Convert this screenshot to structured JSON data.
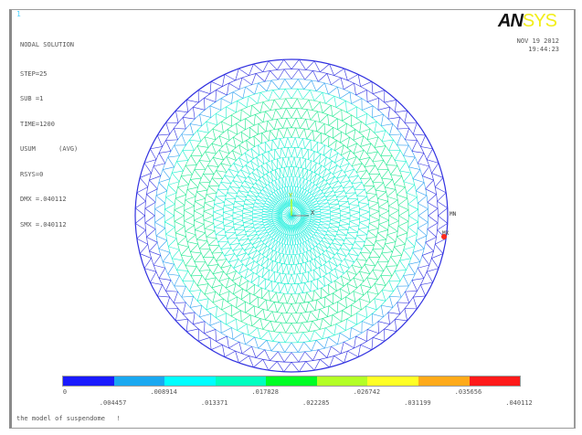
{
  "window_number": "1",
  "logo": {
    "part1": "AN",
    "part2": "SYS"
  },
  "info": {
    "title": "NODAL SOLUTION",
    "lines": [
      "STEP=25",
      "SUB =1",
      "TIME=1200",
      "USUM      (AVG)",
      "RSYS=0",
      "DMX =.040112",
      "SMX =.040112"
    ]
  },
  "date": "NOV 19 2012",
  "time": "19:44:23",
  "markers": {
    "min": "MN",
    "max": "MX",
    "axis_x": "X",
    "axis_y": "Y"
  },
  "legend": {
    "colors": [
      "#1a1aff",
      "#1aa8f0",
      "#00ffff",
      "#00ffbf",
      "#00ff26",
      "#b3ff26",
      "#ffff26",
      "#ffaa1a",
      "#ff1a1a"
    ],
    "labels_top": [
      "0",
      ".008914",
      ".017828",
      ".026742",
      ".035656"
    ],
    "labels_bottom": [
      ".004457",
      ".013371",
      ".022285",
      ".031199",
      ".040112"
    ]
  },
  "footer": "the model of suspendome   !"
}
